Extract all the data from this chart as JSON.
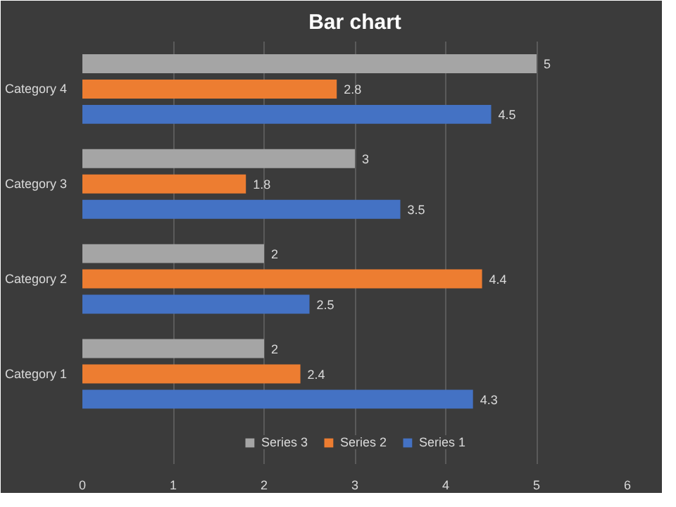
{
  "chart_data": {
    "type": "bar",
    "orientation": "horizontal",
    "title": "Bar chart",
    "categories": [
      "Category 4",
      "Category 3",
      "Category 2",
      "Category 1"
    ],
    "series": [
      {
        "name": "Series 1",
        "color": "#4472c4",
        "values": [
          4.5,
          3.5,
          2.5,
          4.3
        ]
      },
      {
        "name": "Series 2",
        "color": "#ed7d31",
        "values": [
          2.8,
          1.8,
          4.4,
          2.4
        ]
      },
      {
        "name": "Series 3",
        "color": "#a5a5a5",
        "values": [
          5,
          3,
          2,
          2
        ]
      }
    ],
    "xlim": [
      0,
      6
    ],
    "xticks": [
      0,
      1,
      2,
      3,
      4,
      5,
      6
    ],
    "grid": "x",
    "legend": "bottom",
    "data_labels": true
  }
}
